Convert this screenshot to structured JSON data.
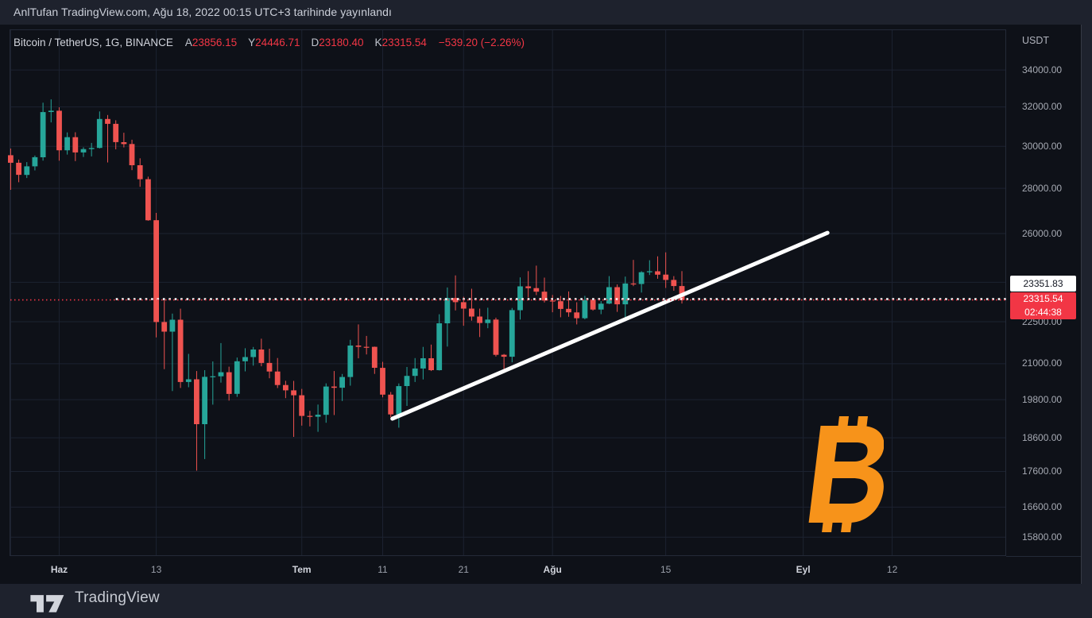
{
  "topbar": {
    "text": "AnlTufan TradingView.com, Ağu 18, 2022 00:15 UTC+3 tarihinde yayınlandı"
  },
  "legend": {
    "symbol": "Bitcoin / TetherUS, 1G, BINANCE",
    "items": [
      {
        "label": "A",
        "value": "23856.15"
      },
      {
        "label": "Y",
        "value": "24446.71"
      },
      {
        "label": "D",
        "value": "23180.40"
      },
      {
        "label": "K",
        "value": "23315.54"
      }
    ],
    "change": "−539.20 (−2.26%)"
  },
  "price_axis": {
    "currency": "USDT",
    "tag_prev_close": "23351.83",
    "tag_price": "23315.54",
    "tag_countdown": "02:44:38"
  },
  "footer": {
    "brand": "TradingView"
  },
  "watermark": {
    "name": "bitcoin-logo",
    "color": "#f7931a"
  },
  "colors": {
    "background": "#0e1118",
    "panel": "#1e222d",
    "grid": "#1c2230",
    "pane_border": "#242a38",
    "text_main": "#d1d4dc",
    "text_dim": "#a6aab3",
    "up": "#26a69a",
    "down": "#ef5350",
    "accent_red": "#f23645",
    "bitcoin_orange": "#f7931a",
    "trendline": "#ffffff"
  },
  "chart_data": {
    "type": "candlestick",
    "title": "Bitcoin / TetherUS, 1G, BINANCE",
    "interval": "1D",
    "scale": "logarithmic",
    "legend_ohlc": {
      "open": 23856.15,
      "high": 24446.71,
      "low": 23180.4,
      "close": 23315.54,
      "change": -539.2,
      "change_pct": -2.26
    },
    "y_axis": {
      "currency": "USDT",
      "ticks": [
        {
          "label": "34000.00",
          "price": 34000
        },
        {
          "label": "32000.00",
          "price": 32000
        },
        {
          "label": "30000.00",
          "price": 30000
        },
        {
          "label": "28000.00",
          "price": 28000
        },
        {
          "label": "26000.00",
          "price": 26000
        },
        {
          "label": "24000.00",
          "price": 24000,
          "label_hidden_behind_tag": true
        },
        {
          "label": "22500.00",
          "price": 22500
        },
        {
          "label": "21000.00",
          "price": 21000
        },
        {
          "label": "19800.00",
          "price": 19800
        },
        {
          "label": "18600.00",
          "price": 18600
        },
        {
          "label": "17600.00",
          "price": 17600
        },
        {
          "label": "16600.00",
          "price": 16600
        },
        {
          "label": "15800.00",
          "price": 15800
        }
      ]
    },
    "x_axis": {
      "ticks": [
        {
          "label": "",
          "index": 0,
          "major": false
        },
        {
          "label": "Haz",
          "index": 6,
          "major": true
        },
        {
          "label": "13",
          "index": 18,
          "major": false
        },
        {
          "label": "Tem",
          "index": 36,
          "major": true
        },
        {
          "label": "11",
          "index": 46,
          "major": false
        },
        {
          "label": "21",
          "index": 56,
          "major": false
        },
        {
          "label": "Ağu",
          "index": 67,
          "major": true
        },
        {
          "label": "15",
          "index": 81,
          "major": false
        },
        {
          "label": "Eyl",
          "index": 98,
          "major": true
        },
        {
          "label": "12",
          "index": 109,
          "major": false
        }
      ]
    },
    "price_line": {
      "value": 23315.54,
      "color": "#f23645"
    },
    "prev_close_line": {
      "value": 23351.83,
      "start_index": 13,
      "color": "#ffffff"
    },
    "trendline": {
      "start": {
        "index": 47.2,
        "price": 19190
      },
      "end": {
        "index": 101,
        "price": 26030
      },
      "color": "#ffffff"
    },
    "candles": [
      [
        "2022-05-26",
        29565,
        29890,
        27933,
        29201
      ],
      [
        "2022-05-27",
        29201,
        29355,
        28282,
        28627
      ],
      [
        "2022-05-28",
        28627,
        29232,
        28480,
        29031
      ],
      [
        "2022-05-29",
        29031,
        29550,
        28839,
        29468
      ],
      [
        "2022-05-30",
        29468,
        32222,
        29303,
        31734
      ],
      [
        "2022-05-31",
        31734,
        32399,
        31200,
        31801
      ],
      [
        "2022-06-01",
        31801,
        31982,
        29301,
        29805
      ],
      [
        "2022-06-02",
        29805,
        30690,
        29594,
        30452
      ],
      [
        "2022-06-03",
        30452,
        30700,
        29282,
        29700
      ],
      [
        "2022-06-04",
        29700,
        29952,
        29481,
        29864
      ],
      [
        "2022-06-05",
        29864,
        30167,
        29506,
        29919
      ],
      [
        "2022-06-06",
        29919,
        31765,
        29894,
        31373
      ],
      [
        "2022-06-07",
        31373,
        31580,
        29218,
        31125
      ],
      [
        "2022-06-08",
        31125,
        31310,
        29850,
        30205
      ],
      [
        "2022-06-09",
        30205,
        30677,
        29944,
        30111
      ],
      [
        "2022-06-10",
        30111,
        30325,
        28850,
        29083
      ],
      [
        "2022-06-11",
        29083,
        29416,
        28072,
        28424
      ],
      [
        "2022-06-12",
        28424,
        28544,
        26550,
        26574
      ],
      [
        "2022-06-13",
        26574,
        26895,
        21925,
        22487
      ],
      [
        "2022-06-14",
        22487,
        23362,
        20816,
        22136
      ],
      [
        "2022-06-15",
        22136,
        22800,
        20080,
        22572
      ],
      [
        "2022-06-16",
        22572,
        22985,
        20183,
        20381
      ],
      [
        "2022-06-17",
        20381,
        21343,
        20207,
        20471
      ],
      [
        "2022-06-18",
        20471,
        20750,
        17622,
        19017
      ],
      [
        "2022-06-19",
        19017,
        20780,
        17960,
        20553
      ],
      [
        "2022-06-20",
        20553,
        21080,
        19637,
        20573
      ],
      [
        "2022-06-21",
        20573,
        21723,
        20360,
        20710
      ],
      [
        "2022-06-22",
        20710,
        20900,
        19770,
        19987
      ],
      [
        "2022-06-23",
        19987,
        21215,
        19890,
        21085
      ],
      [
        "2022-06-24",
        21085,
        21540,
        20740,
        21231
      ],
      [
        "2022-06-25",
        21231,
        21585,
        20936,
        21496
      ],
      [
        "2022-06-26",
        21496,
        21880,
        20912,
        21028
      ],
      [
        "2022-06-27",
        21028,
        21524,
        20506,
        20735
      ],
      [
        "2022-06-28",
        20735,
        21200,
        20180,
        20280
      ],
      [
        "2022-06-29",
        20280,
        20420,
        19850,
        20104
      ],
      [
        "2022-06-30",
        20104,
        20417,
        18626,
        19942
      ],
      [
        "2022-07-01",
        19942,
        20150,
        18975,
        19279
      ],
      [
        "2022-07-02",
        19279,
        19440,
        18950,
        19252
      ],
      [
        "2022-07-03",
        19252,
        19640,
        18781,
        19315
      ],
      [
        "2022-07-04",
        19315,
        20336,
        19062,
        20231
      ],
      [
        "2022-07-05",
        20231,
        20750,
        19305,
        20190
      ],
      [
        "2022-07-06",
        20190,
        20650,
        19755,
        20548
      ],
      [
        "2022-07-07",
        20548,
        21840,
        20260,
        21637
      ],
      [
        "2022-07-08",
        21637,
        22400,
        21188,
        21592
      ],
      [
        "2022-07-09",
        21592,
        21980,
        21322,
        21591
      ],
      [
        "2022-07-10",
        21591,
        21600,
        20654,
        20860
      ],
      [
        "2022-07-11",
        20860,
        21066,
        19875,
        19963
      ],
      [
        "2022-07-12",
        19963,
        20050,
        19240,
        19325
      ],
      [
        "2022-07-13",
        19325,
        20332,
        18910,
        20244
      ],
      [
        "2022-07-14",
        20244,
        20890,
        19596,
        20585
      ],
      [
        "2022-07-15",
        20585,
        21195,
        20380,
        20836
      ],
      [
        "2022-07-16",
        20836,
        21588,
        20465,
        21190
      ],
      [
        "2022-07-17",
        21190,
        21670,
        20750,
        20780
      ],
      [
        "2022-07-18",
        20780,
        22777,
        20766,
        22440
      ],
      [
        "2022-07-19",
        22440,
        23800,
        21600,
        23389
      ],
      [
        "2022-07-20",
        23389,
        24276,
        22920,
        23231
      ],
      [
        "2022-07-21",
        23231,
        23438,
        22350,
        22987
      ],
      [
        "2022-07-22",
        22987,
        23749,
        22536,
        22690
      ],
      [
        "2022-07-23",
        22690,
        22989,
        21940,
        22451
      ],
      [
        "2022-07-24",
        22451,
        23020,
        22260,
        22579
      ],
      [
        "2022-07-25",
        22579,
        22650,
        21250,
        21311
      ],
      [
        "2022-07-26",
        21311,
        21340,
        20706,
        21243
      ],
      [
        "2022-07-27",
        21243,
        23011,
        21050,
        22930
      ],
      [
        "2022-07-28",
        22930,
        24195,
        22580,
        23843
      ],
      [
        "2022-07-29",
        23843,
        24447,
        23412,
        23773
      ],
      [
        "2022-07-30",
        23773,
        24668,
        23502,
        23634
      ],
      [
        "2022-07-31",
        23634,
        24185,
        23220,
        23293
      ],
      [
        "2022-08-01",
        23293,
        23509,
        22850,
        23269
      ],
      [
        "2022-08-02",
        23269,
        23468,
        22664,
        22978
      ],
      [
        "2022-08-03",
        22978,
        23645,
        22683,
        22846
      ],
      [
        "2022-08-04",
        22846,
        23230,
        22400,
        22630
      ],
      [
        "2022-08-05",
        22630,
        23472,
        22586,
        23312
      ],
      [
        "2022-08-06",
        23312,
        23390,
        22911,
        22954
      ],
      [
        "2022-08-07",
        22954,
        23270,
        22780,
        23175
      ],
      [
        "2022-08-08",
        23175,
        24245,
        23158,
        23810
      ],
      [
        "2022-08-09",
        23810,
        23918,
        22865,
        23150
      ],
      [
        "2022-08-10",
        23150,
        24226,
        22665,
        23954
      ],
      [
        "2022-08-11",
        23954,
        24900,
        23852,
        23935
      ],
      [
        "2022-08-12",
        23935,
        24442,
        23600,
        24402
      ],
      [
        "2022-08-13",
        24402,
        24888,
        24290,
        24441
      ],
      [
        "2022-08-14",
        24441,
        25047,
        24144,
        24305
      ],
      [
        "2022-08-15",
        24305,
        25211,
        23780,
        24094
      ],
      [
        "2022-08-16",
        24094,
        24247,
        23671,
        23854
      ],
      [
        "2022-08-17",
        23856.15,
        24446.71,
        23180.4,
        23315.54
      ]
    ]
  }
}
